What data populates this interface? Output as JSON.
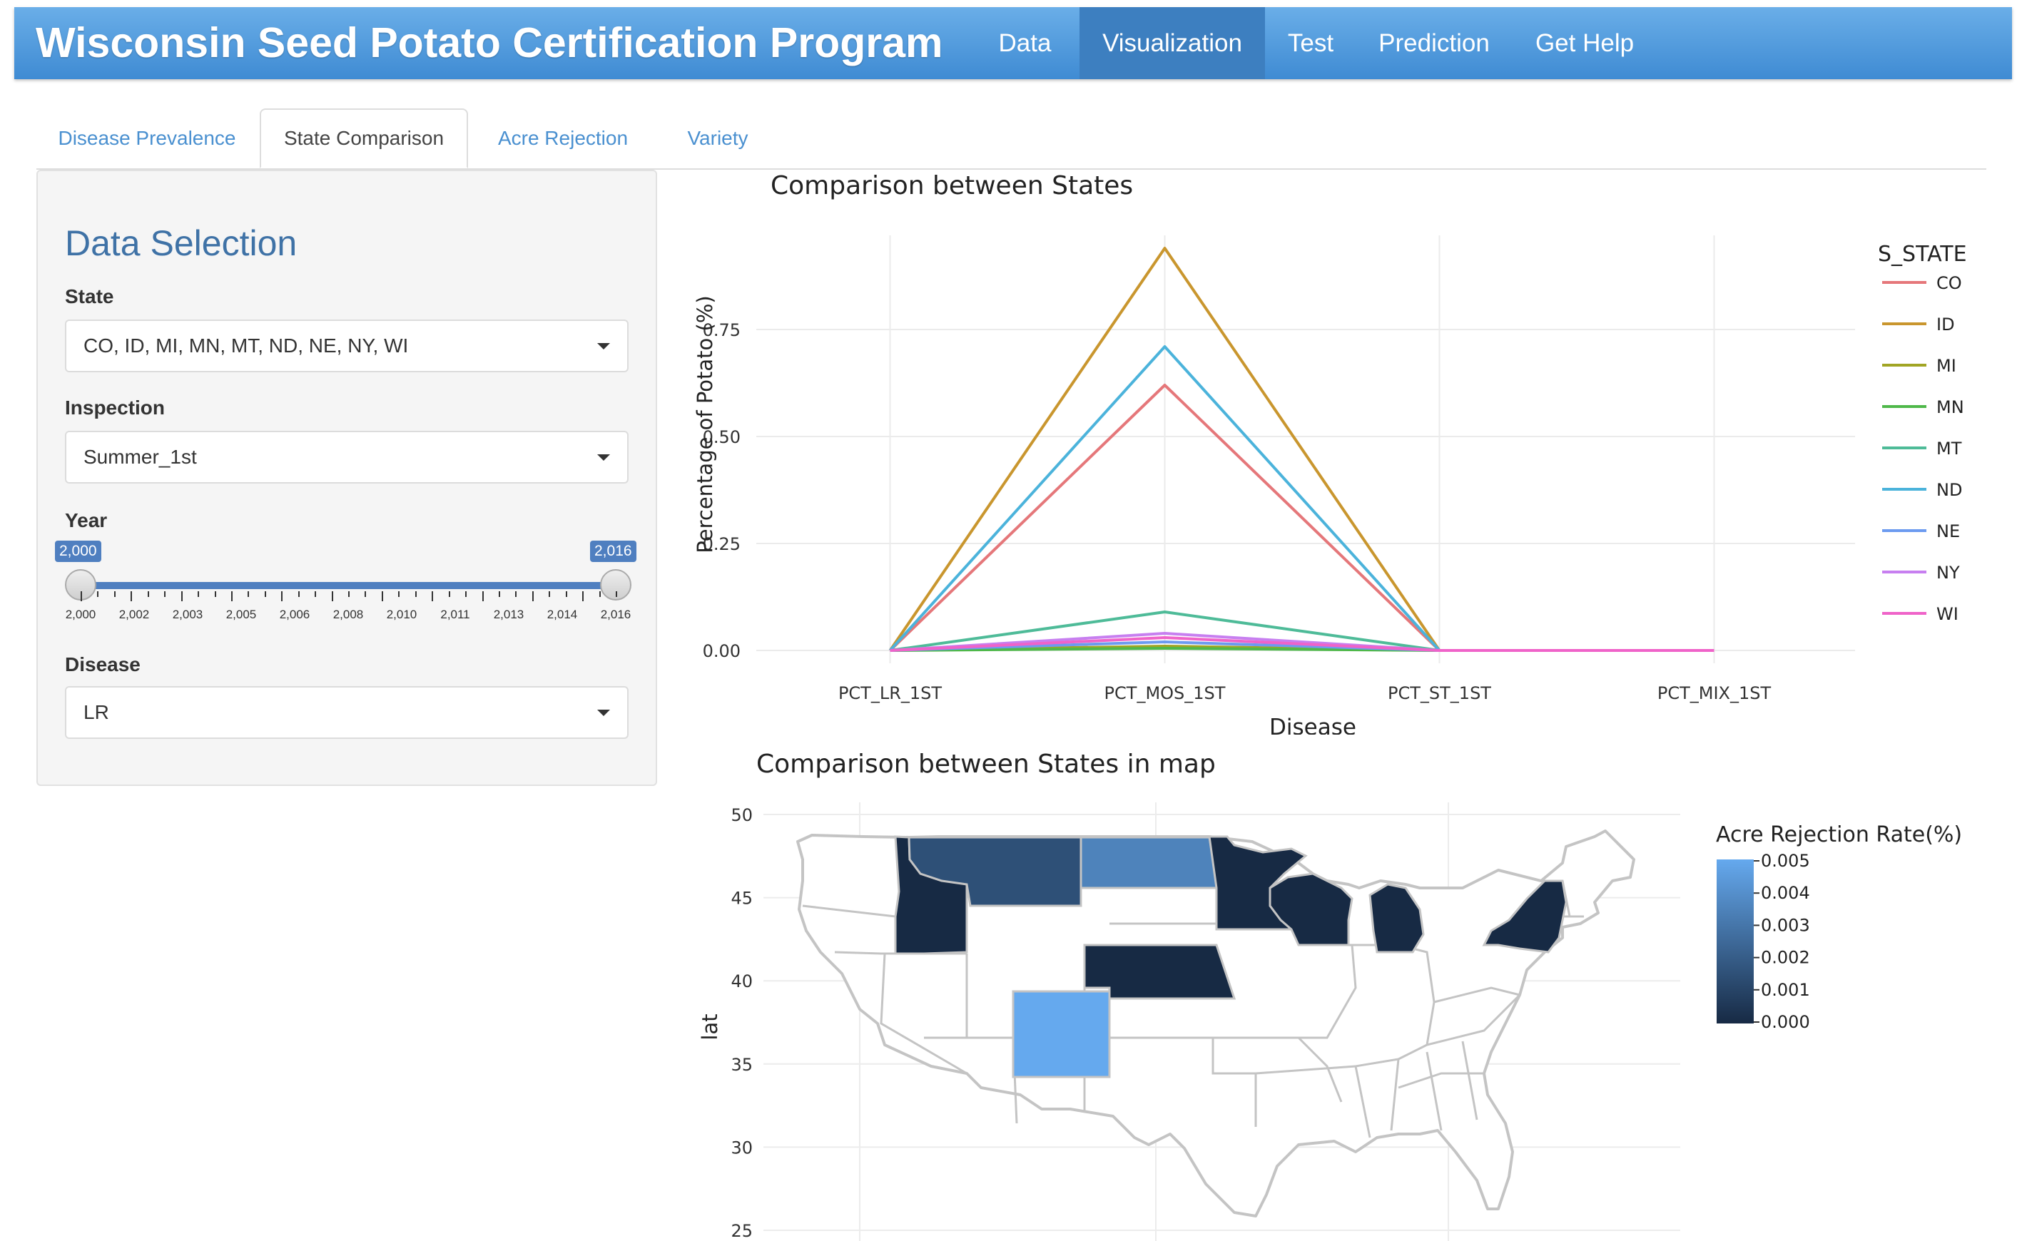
{
  "navbar": {
    "title": "Wisconsin Seed Potato Certification Program",
    "items": [
      {
        "label": "Data",
        "active": false
      },
      {
        "label": "Visualization",
        "active": true
      },
      {
        "label": "Test",
        "active": false
      },
      {
        "label": "Prediction",
        "active": false
      },
      {
        "label": "Get Help",
        "active": false
      }
    ]
  },
  "tabs": [
    {
      "label": "Disease Prevalence",
      "active": false
    },
    {
      "label": "State Comparison",
      "active": true
    },
    {
      "label": "Acre Rejection",
      "active": false
    },
    {
      "label": "Variety",
      "active": false
    }
  ],
  "sidebar": {
    "heading": "Data Selection",
    "state": {
      "label": "State",
      "value": "CO, ID, MI, MN, MT, ND, NE, NY, WI"
    },
    "inspection": {
      "label": "Inspection",
      "value": "Summer_1st"
    },
    "year": {
      "label": "Year",
      "min_label": "2,000",
      "max_label": "2,016",
      "range": [
        2000,
        2016
      ],
      "selected": [
        2000,
        2016
      ],
      "tick_labels": [
        "2,000",
        "2,002",
        "2,003",
        "2,005",
        "2,006",
        "2,008",
        "2,010",
        "2,011",
        "2,013",
        "2,014",
        "2,016"
      ]
    },
    "disease": {
      "label": "Disease",
      "value": "LR"
    }
  },
  "chart_data": [
    {
      "type": "line",
      "title": "Comparison between States",
      "xlabel": "Disease",
      "ylabel": "Percentage of Potato (%)",
      "categories": [
        "PCT_LR_1ST",
        "PCT_MOS_1ST",
        "PCT_ST_1ST",
        "PCT_MIX_1ST"
      ],
      "yticks": [
        "0.00",
        "0.25",
        "0.50",
        "0.75"
      ],
      "ylim": [
        -0.03,
        0.97
      ],
      "legend_title": "S_STATE",
      "legend_position": "right",
      "grid": true,
      "series": [
        {
          "name": "CO",
          "color": "#e5777a",
          "values": [
            0,
            0.62,
            0,
            null
          ]
        },
        {
          "name": "ID",
          "color": "#c9962e",
          "values": [
            0,
            0.94,
            0,
            null
          ]
        },
        {
          "name": "MI",
          "color": "#a1a524",
          "values": [
            0,
            0.01,
            0,
            null
          ]
        },
        {
          "name": "MN",
          "color": "#4fb84a",
          "values": [
            0,
            0.005,
            0,
            null
          ]
        },
        {
          "name": "MT",
          "color": "#4ebb98",
          "values": [
            0,
            0.09,
            0,
            null
          ]
        },
        {
          "name": "ND",
          "color": "#4bb3db",
          "values": [
            0,
            0.71,
            0,
            null
          ]
        },
        {
          "name": "NE",
          "color": "#6c9bf0",
          "values": [
            0,
            0.02,
            0,
            null
          ]
        },
        {
          "name": "NY",
          "color": "#c77ff0",
          "values": [
            0,
            0.04,
            0,
            0
          ]
        },
        {
          "name": "WI",
          "color": "#ef63c9",
          "values": [
            0,
            0.03,
            0,
            0
          ]
        }
      ]
    },
    {
      "type": "choropleth",
      "title": "Comparison between States in map",
      "ylabel": "lat",
      "yticks": [
        "25",
        "30",
        "35",
        "40",
        "45",
        "50"
      ],
      "colorbar_title": "Acre Rejection Rate(%)",
      "colorbar_ticks": [
        "0.005",
        "0.004",
        "0.003",
        "0.002",
        "0.001",
        "0.000"
      ],
      "color_range": [
        0,
        0.005
      ],
      "grid": true,
      "states": [
        {
          "name": "ID",
          "value": 0.0
        },
        {
          "name": "MT",
          "value": 0.0015
        },
        {
          "name": "ND",
          "value": 0.0035
        },
        {
          "name": "MN",
          "value": 0.0
        },
        {
          "name": "WI",
          "value": 0.0
        },
        {
          "name": "MI",
          "value": 0.0
        },
        {
          "name": "NY",
          "value": 0.0
        },
        {
          "name": "NE",
          "value": 0.0
        },
        {
          "name": "CO",
          "value": 0.005
        }
      ],
      "colors": {
        "low": "#172a44",
        "high": "#65a9ee"
      }
    }
  ]
}
